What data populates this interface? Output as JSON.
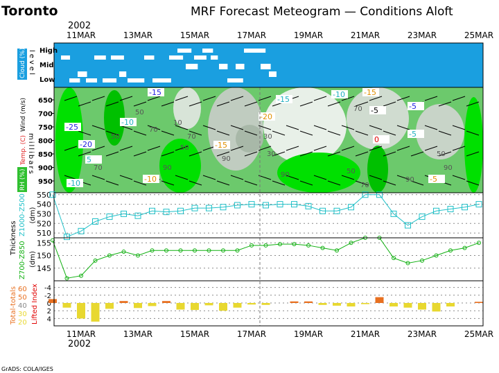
{
  "station": "Toronto",
  "title": "MRF Forecast Meteogram — Conditions Aloft",
  "year": "2002",
  "footer": "GrADS: COLA/IGES",
  "date_labels": [
    "11MAR",
    "13MAR",
    "15MAR",
    "17MAR",
    "19MAR",
    "21MAR",
    "23MAR",
    "25MAR"
  ],
  "date_days": [
    11,
    13,
    15,
    17,
    19,
    21,
    23,
    25
  ],
  "cloud_panel": {
    "label": "Cloud (%)",
    "axis": "level",
    "levels": [
      "High",
      "Mid",
      "Low"
    ],
    "color": "#1a9fe0"
  },
  "upper_panel": {
    "ylabel": "millibars",
    "legend_wind": "Wind (m/s)",
    "legend_temp": "Temp. (C)",
    "legend_rh": "RH (%)",
    "levels": [
      "650",
      "700",
      "750",
      "800",
      "850",
      "900",
      "950"
    ],
    "temp_labels": [
      "-25",
      "-20",
      "-15",
      "-10",
      "-15",
      "-10",
      "-5",
      "-5",
      "-10",
      "-15",
      "-20",
      "-15",
      "-10",
      "-5",
      "-5",
      "0",
      "5"
    ],
    "rh_labels": [
      "50",
      "70",
      "70",
      "50",
      "10",
      "50",
      "90",
      "30",
      "90",
      "50",
      "70",
      "30",
      "90",
      "70",
      "50",
      "90",
      "90",
      "70"
    ]
  },
  "chart_data": [
    {
      "type": "line",
      "title": "Thickness 1000-500",
      "ylabel": "(dm)",
      "legend": "Z1000-Z500",
      "color": "#20c0c8",
      "ylim": [
        505,
        552
      ],
      "yticks": [
        510,
        520,
        530,
        540,
        550
      ],
      "x_day": [
        10,
        10.5,
        11,
        11.5,
        12,
        12.5,
        13,
        13.5,
        14,
        14.5,
        15,
        15.5,
        16,
        16.5,
        17,
        17.5,
        18,
        18.5,
        19,
        19.5,
        20,
        20.5,
        21,
        21.5,
        22,
        22.5,
        23,
        23.5,
        24,
        24.5,
        25
      ],
      "values": [
        550,
        506,
        512,
        522,
        527,
        530,
        528,
        533,
        532,
        533,
        536,
        536,
        537,
        539,
        540,
        539,
        540,
        540,
        538,
        533,
        533,
        537,
        550,
        550,
        530,
        518,
        527,
        533,
        535,
        537,
        540
      ]
    },
    {
      "type": "line",
      "title": "Thickness 700-850",
      "ylabel": "(dm)",
      "legend": "Z700-Z850",
      "color": "#10b010",
      "ylim": [
        140,
        157
      ],
      "yticks": [
        145,
        150,
        155
      ],
      "x_day": [
        10,
        10.5,
        11,
        11.5,
        12,
        12.5,
        13,
        13.5,
        14,
        14.5,
        15,
        15.5,
        16,
        16.5,
        17,
        17.5,
        18,
        18.5,
        19,
        19.5,
        20,
        20.5,
        21,
        21.5,
        22,
        22.5,
        23,
        23.5,
        24,
        24.5,
        25
      ],
      "values": [
        156,
        141,
        142,
        148,
        150,
        151.5,
        150,
        152,
        152,
        152,
        152,
        152,
        152,
        152,
        154,
        154,
        154.5,
        154.5,
        154,
        153,
        152,
        155,
        157,
        157,
        149,
        147,
        148,
        150,
        152,
        153,
        155
      ]
    },
    {
      "type": "bar",
      "title": "Lifted Index / Total-totals",
      "ylabel": "Lifted Index",
      "legend": "Total-totals",
      "ylim": [
        -5,
        5
      ],
      "yticks": [
        -4,
        -2,
        0,
        2,
        4
      ],
      "tt_scale": [
        "60",
        "50",
        "40",
        "30",
        "20"
      ],
      "x_day": [
        10,
        10.5,
        11,
        11.5,
        12,
        12.5,
        13,
        13.5,
        14,
        14.5,
        15,
        15.5,
        16,
        16.5,
        17,
        17.5,
        18,
        18.5,
        19,
        19.5,
        20,
        20.5,
        21,
        21.5,
        22,
        22.5,
        23,
        23.5,
        24,
        24.5,
        25
      ],
      "values": [
        -1,
        1.2,
        4,
        4.8,
        1.5,
        -0.5,
        1.3,
        0.8,
        -0.5,
        1.7,
        1.8,
        0.6,
        2,
        1.2,
        0.4,
        0.5,
        0,
        -0.4,
        -0.4,
        0.5,
        0.7,
        0.9,
        0.3,
        -1.5,
        0.9,
        1.2,
        1.7,
        2.2,
        0.9,
        0,
        -0.3
      ],
      "tt_color": [
        "#e87020",
        "#e8d830",
        "#e8d830",
        "#e8d830",
        "#e8d830",
        "#e87020",
        "#e8d830",
        "#e8d830",
        "#e87020",
        "#e8d830",
        "#e8d830",
        "#e8d830",
        "#e8d830",
        "#e8d830",
        "#e8d830",
        "#e8d830",
        "#e8d830",
        "#e87020",
        "#e87020",
        "#e8d830",
        "#e8d830",
        "#e8d830",
        "#e8d830",
        "#e87020",
        "#e8d830",
        "#e8d830",
        "#e8d830",
        "#e8d830",
        "#e8d830",
        "#e8d830",
        "#e87020"
      ]
    }
  ]
}
